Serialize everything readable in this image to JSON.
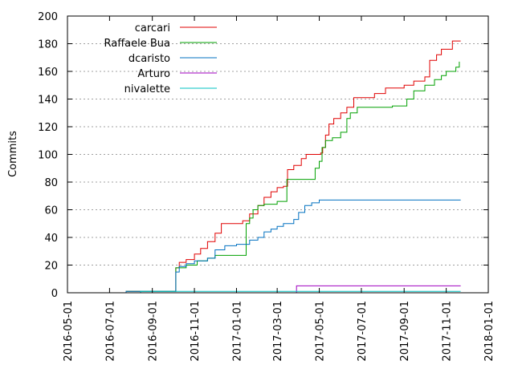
{
  "chart_data": {
    "type": "line",
    "ylabel": "Commits",
    "xlabel": "",
    "ylim": [
      0,
      200
    ],
    "yticks": [
      0,
      20,
      40,
      60,
      80,
      100,
      120,
      140,
      160,
      180,
      200
    ],
    "xlim": [
      "2016-05-01",
      "2018-01-01"
    ],
    "xticks": [
      "2016-05-01",
      "2016-07-01",
      "2016-09-01",
      "2016-11-01",
      "2017-01-01",
      "2017-03-01",
      "2017-05-01",
      "2017-07-01",
      "2017-09-01",
      "2017-11-01",
      "2018-01-01"
    ],
    "grid": "horizontal dashed",
    "legend_placement": "top-left",
    "series": [
      {
        "name": "carcari",
        "color": "#e00000",
        "step": true,
        "points": [
          [
            "2016-05-01",
            0
          ],
          [
            "2016-07-25",
            1
          ],
          [
            "2016-10-05",
            18
          ],
          [
            "2016-10-10",
            22
          ],
          [
            "2016-10-20",
            24
          ],
          [
            "2016-11-01",
            28
          ],
          [
            "2016-11-10",
            32
          ],
          [
            "2016-11-20",
            37
          ],
          [
            "2016-12-01",
            43
          ],
          [
            "2016-12-10",
            50
          ],
          [
            "2017-01-10",
            52
          ],
          [
            "2017-01-20",
            57
          ],
          [
            "2017-02-01",
            63
          ],
          [
            "2017-02-10",
            69
          ],
          [
            "2017-02-20",
            73
          ],
          [
            "2017-03-01",
            76
          ],
          [
            "2017-03-10",
            77
          ],
          [
            "2017-03-16",
            89
          ],
          [
            "2017-03-25",
            92
          ],
          [
            "2017-04-05",
            97
          ],
          [
            "2017-04-12",
            100
          ],
          [
            "2017-05-03",
            101
          ],
          [
            "2017-05-06",
            105
          ],
          [
            "2017-05-10",
            114
          ],
          [
            "2017-05-15",
            122
          ],
          [
            "2017-05-22",
            126
          ],
          [
            "2017-06-01",
            130
          ],
          [
            "2017-06-10",
            134
          ],
          [
            "2017-06-20",
            141
          ],
          [
            "2017-07-20",
            144
          ],
          [
            "2017-08-05",
            148
          ],
          [
            "2017-09-01",
            150
          ],
          [
            "2017-09-15",
            153
          ],
          [
            "2017-10-01",
            156
          ],
          [
            "2017-10-08",
            168
          ],
          [
            "2017-10-18",
            172
          ],
          [
            "2017-10-25",
            176
          ],
          [
            "2017-11-10",
            182
          ],
          [
            "2017-11-22",
            182
          ]
        ]
      },
      {
        "name": "Raffaele Bua",
        "color": "#00a000",
        "step": true,
        "points": [
          [
            "2016-05-01",
            0
          ],
          [
            "2016-07-25",
            1
          ],
          [
            "2016-10-05",
            18
          ],
          [
            "2016-10-20",
            20
          ],
          [
            "2016-11-05",
            23
          ],
          [
            "2016-11-20",
            25
          ],
          [
            "2016-12-01",
            27
          ],
          [
            "2017-01-15",
            50
          ],
          [
            "2017-01-20",
            54
          ],
          [
            "2017-01-25",
            60
          ],
          [
            "2017-02-01",
            63
          ],
          [
            "2017-02-10",
            64
          ],
          [
            "2017-03-01",
            66
          ],
          [
            "2017-03-15",
            82
          ],
          [
            "2017-04-25",
            90
          ],
          [
            "2017-05-01",
            95
          ],
          [
            "2017-05-05",
            105
          ],
          [
            "2017-05-10",
            110
          ],
          [
            "2017-05-20",
            112
          ],
          [
            "2017-06-01",
            116
          ],
          [
            "2017-06-10",
            126
          ],
          [
            "2017-06-15",
            130
          ],
          [
            "2017-06-25",
            134
          ],
          [
            "2017-08-15",
            135
          ],
          [
            "2017-09-05",
            140
          ],
          [
            "2017-09-15",
            146
          ],
          [
            "2017-10-01",
            150
          ],
          [
            "2017-10-15",
            154
          ],
          [
            "2017-10-25",
            157
          ],
          [
            "2017-11-01",
            160
          ],
          [
            "2017-11-15",
            163
          ],
          [
            "2017-11-20",
            167
          ]
        ]
      },
      {
        "name": "dcaristo",
        "color": "#0070c0",
        "step": true,
        "points": [
          [
            "2016-05-01",
            0
          ],
          [
            "2016-07-25",
            1
          ],
          [
            "2016-10-05",
            15
          ],
          [
            "2016-10-10",
            19
          ],
          [
            "2016-10-20",
            21
          ],
          [
            "2016-11-01",
            23
          ],
          [
            "2016-11-20",
            25
          ],
          [
            "2016-12-01",
            31
          ],
          [
            "2016-12-15",
            34
          ],
          [
            "2017-01-01",
            35
          ],
          [
            "2017-01-20",
            38
          ],
          [
            "2017-02-01",
            40
          ],
          [
            "2017-02-10",
            44
          ],
          [
            "2017-02-20",
            46
          ],
          [
            "2017-03-01",
            48
          ],
          [
            "2017-03-10",
            50
          ],
          [
            "2017-03-25",
            53
          ],
          [
            "2017-04-01",
            58
          ],
          [
            "2017-04-10",
            63
          ],
          [
            "2017-04-20",
            65
          ],
          [
            "2017-05-01",
            67
          ],
          [
            "2017-11-22",
            67
          ]
        ]
      },
      {
        "name": "Arturo",
        "color": "#a000c0",
        "step": true,
        "points": [
          [
            "2016-05-01",
            0
          ],
          [
            "2017-03-29",
            5
          ],
          [
            "2017-11-22",
            5
          ]
        ]
      },
      {
        "name": "nivalette",
        "color": "#00c0c0",
        "step": true,
        "points": [
          [
            "2016-05-01",
            0
          ],
          [
            "2016-08-15",
            1
          ],
          [
            "2017-11-22",
            1
          ]
        ]
      }
    ]
  }
}
